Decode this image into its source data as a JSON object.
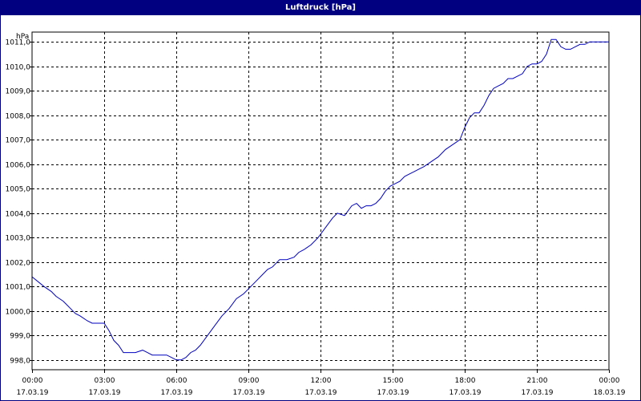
{
  "window": {
    "title": "Luftdruck [hPa]"
  },
  "colors": {
    "titlebar": "#000080",
    "line": "#0000c0",
    "grid": "#000000",
    "background": "#ffffff"
  },
  "chart_data": {
    "type": "line",
    "title": "Luftdruck [hPa]",
    "ylabel": "hPa",
    "xlabel": "",
    "ylim": [
      997.6,
      1011.4
    ],
    "xlim": [
      0,
      24
    ],
    "grid": true,
    "y_ticks": [
      {
        "value": 998.0,
        "label": "998,0"
      },
      {
        "value": 999.0,
        "label": "999,0"
      },
      {
        "value": 1000.0,
        "label": "1000,0"
      },
      {
        "value": 1001.0,
        "label": "1001,0"
      },
      {
        "value": 1002.0,
        "label": "1002,0"
      },
      {
        "value": 1003.0,
        "label": "1003,0"
      },
      {
        "value": 1004.0,
        "label": "1004,0"
      },
      {
        "value": 1005.0,
        "label": "1005,0"
      },
      {
        "value": 1006.0,
        "label": "1006,0"
      },
      {
        "value": 1007.0,
        "label": "1007,0"
      },
      {
        "value": 1008.0,
        "label": "1008,0"
      },
      {
        "value": 1009.0,
        "label": "1009,0"
      },
      {
        "value": 1010.0,
        "label": "1010,0"
      },
      {
        "value": 1011.0,
        "label": "1011,0"
      }
    ],
    "x_ticks": [
      {
        "value": 0,
        "time": "00:00",
        "date": "17.03.19"
      },
      {
        "value": 3,
        "time": "03:00",
        "date": "17.03.19"
      },
      {
        "value": 6,
        "time": "06:00",
        "date": "17.03.19"
      },
      {
        "value": 9,
        "time": "09:00",
        "date": "17.03.19"
      },
      {
        "value": 12,
        "time": "12:00",
        "date": "17.03.19"
      },
      {
        "value": 15,
        "time": "15:00",
        "date": "17.03.19"
      },
      {
        "value": 18,
        "time": "18:00",
        "date": "17.03.19"
      },
      {
        "value": 21,
        "time": "21:00",
        "date": "17.03.19"
      },
      {
        "value": 24,
        "time": "00:00",
        "date": "18.03.19"
      }
    ],
    "series": [
      {
        "x": [
          0.0,
          0.5,
          0.8,
          1.0,
          1.3,
          1.6,
          1.8,
          2.0,
          2.3,
          2.5,
          2.7,
          3.0,
          3.2,
          3.4,
          3.6,
          3.8,
          4.1,
          4.3,
          4.6,
          4.8,
          5.0,
          5.2,
          5.4,
          5.6,
          5.8,
          6.0,
          6.2,
          6.4,
          6.6,
          6.8,
          7.0,
          7.3,
          7.6,
          7.9,
          8.2,
          8.5,
          8.8,
          9.0,
          9.3,
          9.6,
          9.8,
          10.0,
          10.3,
          10.6,
          10.9,
          11.1,
          11.3,
          11.6,
          11.9,
          12.2,
          12.5,
          12.7,
          13.0,
          13.3,
          13.5,
          13.7,
          13.9,
          14.1,
          14.3,
          14.5,
          14.7,
          14.9,
          15.1,
          15.3,
          15.5,
          15.7,
          15.9,
          16.1,
          16.3,
          16.6,
          16.9,
          17.2,
          17.5,
          17.8,
          18.0,
          18.2,
          18.4,
          18.6,
          18.8,
          19.0,
          19.2,
          19.4,
          19.6,
          19.8,
          20.0,
          20.2,
          20.4,
          20.6,
          20.8,
          21.0,
          21.2,
          21.4,
          21.6,
          21.8,
          22.0,
          22.2,
          22.4,
          22.6,
          22.8,
          23.0,
          23.2,
          23.4,
          23.6,
          23.8,
          24.0
        ],
        "y": [
          1001.4,
          1001.0,
          1000.8,
          1000.6,
          1000.4,
          1000.1,
          999.9,
          999.8,
          999.6,
          999.5,
          999.5,
          999.5,
          999.2,
          998.8,
          998.6,
          998.3,
          998.3,
          998.3,
          998.4,
          998.3,
          998.2,
          998.2,
          998.2,
          998.2,
          998.1,
          998.0,
          998.0,
          998.1,
          998.3,
          998.4,
          998.6,
          999.0,
          999.4,
          999.8,
          1000.1,
          1000.5,
          1000.7,
          1000.9,
          1001.2,
          1001.5,
          1001.7,
          1001.8,
          1002.1,
          1002.1,
          1002.2,
          1002.4,
          1002.5,
          1002.7,
          1003.0,
          1003.4,
          1003.8,
          1004.0,
          1003.9,
          1004.3,
          1004.4,
          1004.2,
          1004.3,
          1004.3,
          1004.4,
          1004.6,
          1004.9,
          1005.1,
          1005.2,
          1005.3,
          1005.5,
          1005.6,
          1005.7,
          1005.8,
          1005.9,
          1006.1,
          1006.3,
          1006.6,
          1006.8,
          1007.0,
          1007.5,
          1007.9,
          1008.1,
          1008.1,
          1008.4,
          1008.8,
          1009.1,
          1009.2,
          1009.3,
          1009.5,
          1009.5,
          1009.6,
          1009.7,
          1010.0,
          1010.1,
          1010.1,
          1010.2,
          1010.5,
          1011.1,
          1011.1,
          1010.8,
          1010.7,
          1010.7,
          1010.8,
          1010.9,
          1010.9,
          1011.0,
          1011.0,
          1011.0,
          1011.0,
          1011.0
        ]
      }
    ]
  }
}
